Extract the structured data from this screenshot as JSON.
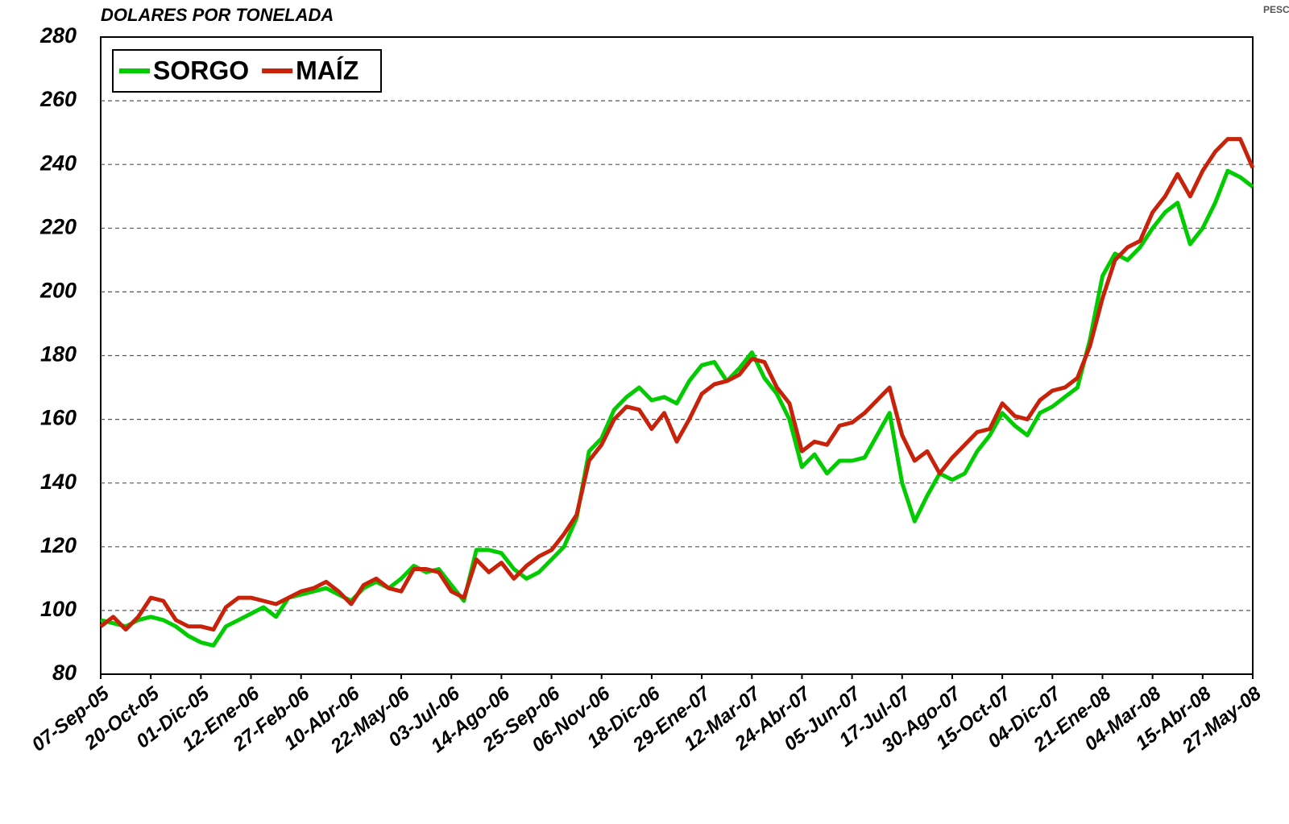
{
  "chart_data": {
    "type": "line",
    "title": "DOLARES POR TONELADA",
    "source": "PESCA Y ALIME",
    "categories": [
      "07-Sep-05",
      null,
      null,
      null,
      "20-Oct-05",
      null,
      null,
      null,
      "01-Dic-05",
      null,
      null,
      null,
      "12-Ene-06",
      null,
      null,
      null,
      "27-Feb-06",
      null,
      null,
      null,
      "10-Abr-06",
      null,
      null,
      null,
      "22-May-06",
      null,
      null,
      null,
      "03-Jul-06",
      null,
      null,
      null,
      "14-Ago-06",
      null,
      null,
      null,
      "25-Sep-06",
      null,
      null,
      null,
      "06-Nov-06",
      null,
      null,
      null,
      "18-Dic-06",
      null,
      null,
      null,
      "29-Ene-07",
      null,
      null,
      null,
      "12-Mar-07",
      null,
      null,
      null,
      "24-Abr-07",
      null,
      null,
      null,
      "05-Jun-07",
      null,
      null,
      null,
      "17-Jul-07",
      null,
      null,
      null,
      "30-Ago-07",
      null,
      null,
      null,
      "15-Oct-07",
      null,
      null,
      null,
      "04-Dic-07",
      null,
      null,
      null,
      "21-Ene-08",
      null,
      null,
      null,
      "04-Mar-08",
      null,
      null,
      null,
      "15-Abr-08",
      null,
      null,
      null,
      "27-May-08"
    ],
    "series": [
      {
        "name": "SORGO",
        "color": "#00cc00",
        "values": [
          97,
          96,
          95,
          97,
          98,
          97,
          95,
          92,
          90,
          89,
          95,
          97,
          99,
          101,
          98,
          104,
          105,
          106,
          107,
          105,
          103,
          107,
          109,
          107,
          110,
          114,
          112,
          113,
          108,
          103,
          119,
          119,
          118,
          113,
          110,
          112,
          116,
          120,
          129,
          150,
          154,
          163,
          167,
          170,
          166,
          167,
          165,
          172,
          177,
          178,
          172,
          176,
          181,
          173,
          168,
          160,
          145,
          149,
          143,
          147,
          147,
          148,
          155,
          162,
          140,
          128,
          136,
          143,
          141,
          143,
          150,
          155,
          162,
          158,
          155,
          162,
          164,
          167,
          170,
          185,
          205,
          212,
          210,
          214,
          220,
          225,
          228,
          215,
          220,
          228,
          238,
          236,
          233
        ]
      },
      {
        "name": "MAÍZ",
        "color": "#c8230a",
        "values": [
          95,
          98,
          94,
          98,
          104,
          103,
          97,
          95,
          95,
          94,
          101,
          104,
          104,
          103,
          102,
          104,
          106,
          107,
          109,
          106,
          102,
          108,
          110,
          107,
          106,
          113,
          113,
          112,
          106,
          104,
          116,
          112,
          115,
          110,
          114,
          117,
          119,
          124,
          130,
          147,
          152,
          160,
          164,
          163,
          157,
          162,
          153,
          160,
          168,
          171,
          172,
          174,
          179,
          178,
          170,
          165,
          150,
          153,
          152,
          158,
          159,
          162,
          166,
          170,
          155,
          147,
          150,
          143,
          148,
          152,
          156,
          157,
          165,
          161,
          160,
          166,
          169,
          170,
          173,
          183,
          198,
          210,
          214,
          216,
          225,
          230,
          237,
          230,
          238,
          244,
          248,
          248,
          239
        ]
      }
    ],
    "ylim": [
      80,
      280
    ],
    "yticks": [
      80,
      100,
      120,
      140,
      160,
      180,
      200,
      220,
      240,
      260,
      280
    ],
    "grid": true,
    "legend": "top-left"
  }
}
